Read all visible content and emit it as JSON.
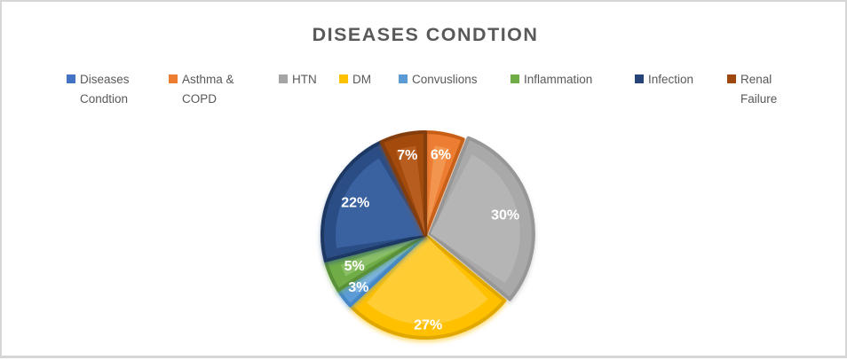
{
  "chart_data": {
    "type": "pie",
    "title": "DISEASES CONDTION",
    "legend_position": "top",
    "title_color": "#595959",
    "legend_text_color": "#595959",
    "data_label_color": "#FFFFFF",
    "categories": [
      "Diseases Condtion",
      "Asthma & COPD",
      "HTN",
      "DM",
      "Convuslions",
      "Inflammation",
      "Infection",
      "Renal Failure"
    ],
    "values": [
      0,
      6,
      30,
      27,
      3,
      5,
      22,
      7
    ],
    "unit": "%",
    "slices": [
      {
        "label": "Diseases Condtion",
        "value": 0,
        "data_label": "",
        "color": "#4472C4",
        "fill": "#4472C4",
        "dark": "#2F5597",
        "light": "#6A8FD1",
        "exploded": false
      },
      {
        "label": "Asthma & COPD",
        "value": 6,
        "data_label": "6%",
        "color": "#ED7D31",
        "fill": "#ED7D31",
        "dark": "#C95F16",
        "light": "#F2954F",
        "exploded": false
      },
      {
        "label": "HTN",
        "value": 30,
        "data_label": "30%",
        "color": "#A5A5A5",
        "fill": "#A9A9A9",
        "dark": "#979797",
        "light": "#B5B5B5",
        "exploded": true
      },
      {
        "label": "DM",
        "value": 27,
        "data_label": "27%",
        "color": "#FFC000",
        "fill": "#FFC000",
        "dark": "#E0A800",
        "light": "#FFCD33",
        "exploded": false
      },
      {
        "label": "Convuslions",
        "value": 3,
        "data_label": "3%",
        "color": "#5B9BD5",
        "fill": "#5B9BD5",
        "dark": "#4587C4",
        "light": "#7AB2E0",
        "exploded": false
      },
      {
        "label": "Inflammation",
        "value": 5,
        "data_label": "5%",
        "color": "#70AD47",
        "fill": "#70AD47",
        "dark": "#5A9138",
        "light": "#8BBF67",
        "exploded": false
      },
      {
        "label": "Infection",
        "value": 22,
        "data_label": "22%",
        "color": "#264478",
        "fill": "#2C4E86",
        "dark": "#1F3864",
        "light": "#3A62A0",
        "exploded": false
      },
      {
        "label": "Renal Failure",
        "value": 7,
        "data_label": "7%",
        "color": "#9E480E",
        "fill": "#A34B10",
        "dark": "#843C0C",
        "light": "#B75D20",
        "exploded": false
      }
    ]
  }
}
